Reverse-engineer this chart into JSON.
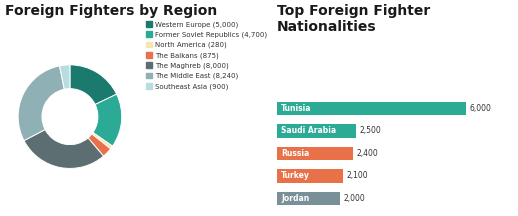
{
  "pie_title": "Foreign Fighters by Region",
  "pie_labels": [
    "Western Europe (5,000)",
    "Former Soviet Republics (4,700)",
    "North America (280)",
    "The Balkans (875)",
    "The Maghreb (8,000)",
    "The Middle East (8,240)",
    "Southeast Asia (900)"
  ],
  "pie_values": [
    5000,
    4700,
    280,
    875,
    8000,
    8240,
    900
  ],
  "pie_colors": [
    "#1a7a6e",
    "#2baa96",
    "#f5e6b0",
    "#e8714a",
    "#5c6e72",
    "#8fb0b5",
    "#b8dde0"
  ],
  "bar_title": "Top Foreign Fighter\nNationalities",
  "bar_labels": [
    "Tunisia",
    "Saudi Arabia",
    "Russia",
    "Turkey",
    "Jordan"
  ],
  "bar_values": [
    6000,
    2500,
    2400,
    2100,
    2000
  ],
  "bar_colors": [
    "#2baa96",
    "#2baa96",
    "#e8714a",
    "#e8714a",
    "#7a9099"
  ],
  "bar_value_labels": [
    "6,000",
    "2,500",
    "2,400",
    "2,100",
    "2,000"
  ],
  "background_color": "#ffffff",
  "title_color": "#1a1a1a",
  "text_color": "#333333"
}
